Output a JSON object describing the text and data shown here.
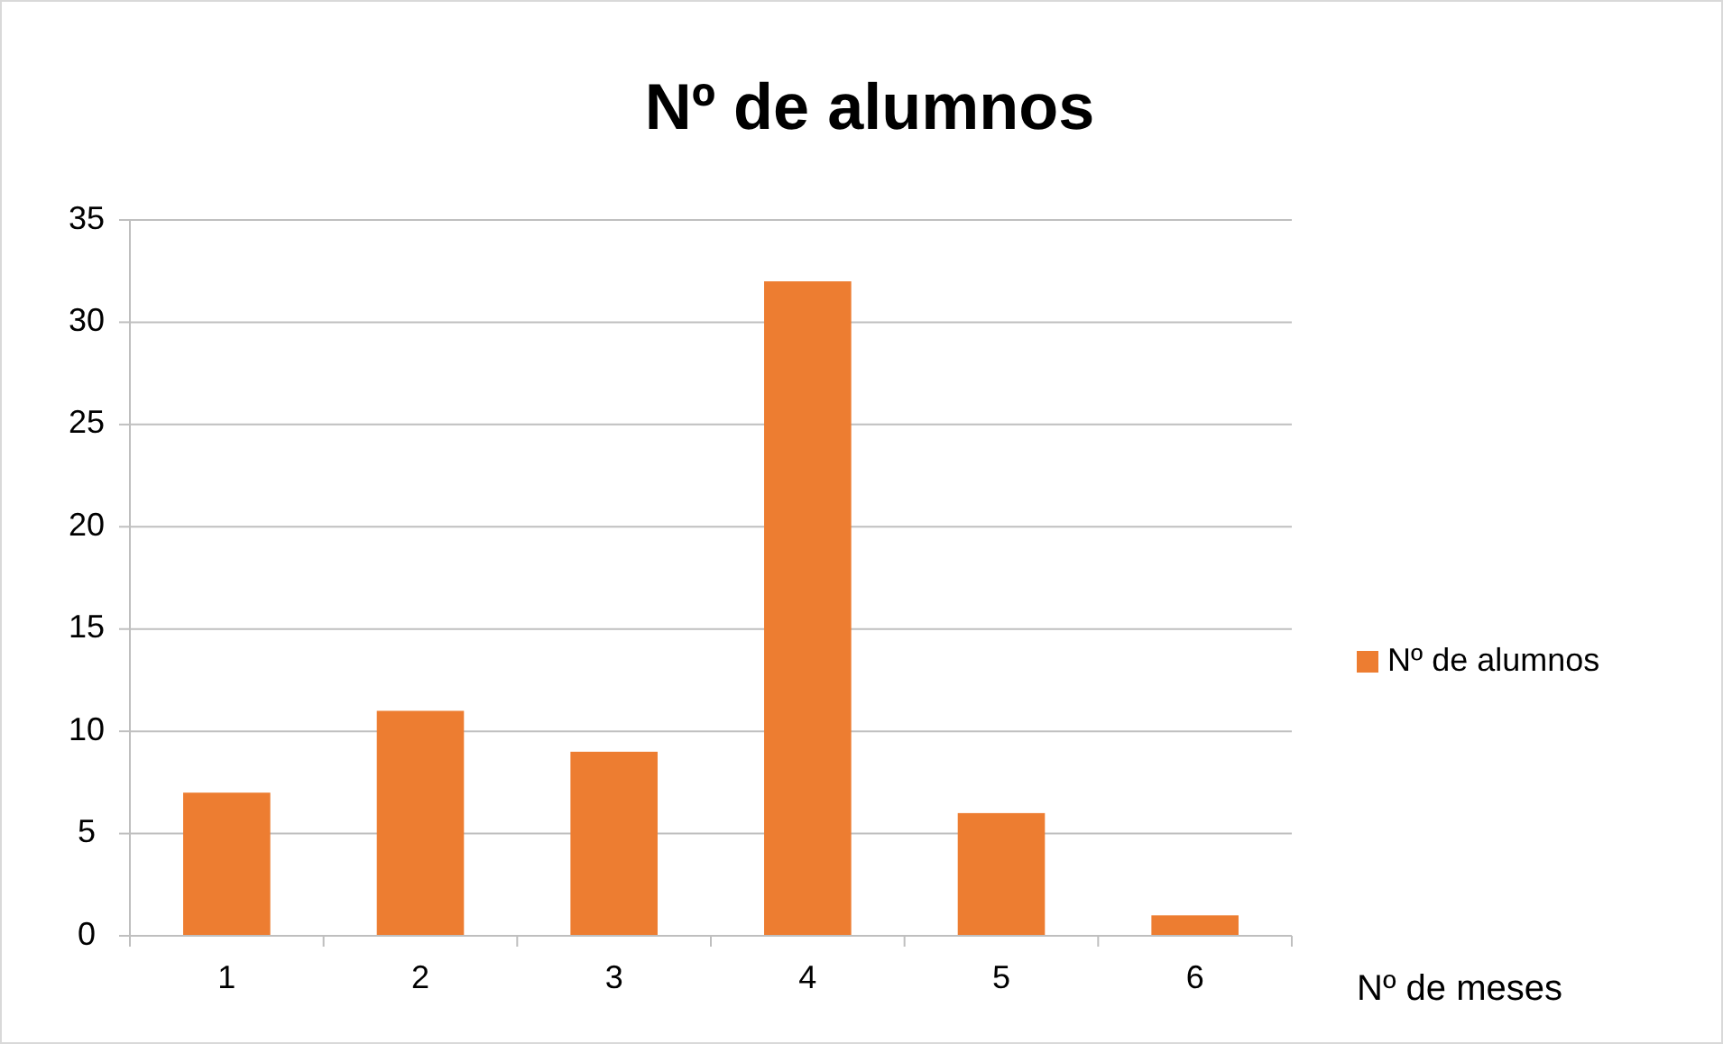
{
  "chart_data": {
    "type": "bar",
    "title": "Nº de alumnos",
    "xlabel": "Nº de meses",
    "categories": [
      "1",
      "2",
      "3",
      "4",
      "5",
      "6"
    ],
    "series": [
      {
        "name": "Nº de alumnos",
        "color": "#ed7d31",
        "values": [
          7,
          11,
          9,
          32,
          6,
          1
        ]
      }
    ],
    "ylim": [
      0,
      35
    ],
    "yticks": [
      0,
      5,
      10,
      15,
      20,
      25,
      30,
      35
    ],
    "grid": "y",
    "legend": "right"
  }
}
